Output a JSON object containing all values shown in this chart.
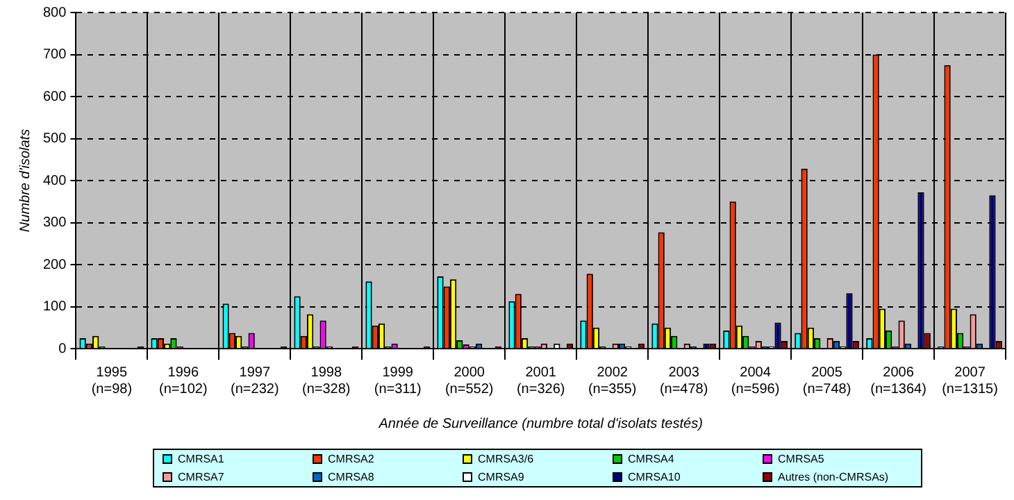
{
  "chart_data": {
    "type": "bar",
    "xlabel": "Année de Surveillance (numbre total d'isolats testés)",
    "ylabel": "Numbre d'isolats",
    "categories": [
      "1995 (n=98)",
      "1996 (n=102)",
      "1997 (n=232)",
      "1998 (n=328)",
      "1999 (n=311)",
      "2000 (n=552)",
      "2001 (n=326)",
      "2002 (n=355)",
      "2003 (n=478)",
      "2004 (n=596)",
      "2005 (n=748)",
      "2006 (n=1364)",
      "2007 (n=1315)"
    ],
    "series": [
      {
        "name": "CMRSA1",
        "color": "#00ffff",
        "values": [
          25,
          25,
          107,
          125,
          160,
          172,
          113,
          67,
          60,
          43,
          37,
          25,
          5
        ]
      },
      {
        "name": "CMRSA2",
        "color": "#ff3300",
        "values": [
          12,
          25,
          37,
          30,
          55,
          148,
          130,
          178,
          277,
          350,
          428,
          700,
          675
        ]
      },
      {
        "name": "CMRSA3/6",
        "color": "#ffff00",
        "values": [
          30,
          12,
          30,
          82,
          60,
          165,
          25,
          50,
          50,
          55,
          50,
          95,
          95
        ]
      },
      {
        "name": "CMRSA4",
        "color": "#00cc00",
        "values": [
          5,
          25,
          5,
          5,
          5,
          20,
          5,
          5,
          30,
          30,
          25,
          43,
          37
        ]
      },
      {
        "name": "CMRSA5",
        "color": "#ff00ff",
        "values": [
          0,
          5,
          37,
          67,
          12,
          10,
          5,
          0,
          0,
          5,
          0,
          5,
          5
        ]
      },
      {
        "name": "CMRSA7",
        "color": "#ff9999",
        "values": [
          0,
          0,
          0,
          5,
          0,
          5,
          12,
          12,
          12,
          18,
          25,
          67,
          82
        ]
      },
      {
        "name": "CMRSA8",
        "color": "#0066cc",
        "values": [
          0,
          0,
          0,
          0,
          0,
          12,
          0,
          12,
          5,
          5,
          18,
          12,
          12
        ]
      },
      {
        "name": "CMRSA9",
        "color": "#ffffff",
        "values": [
          0,
          0,
          0,
          0,
          0,
          0,
          12,
          5,
          0,
          5,
          5,
          0,
          0
        ]
      },
      {
        "name": "CMRSA10",
        "color": "#000080",
        "values": [
          0,
          0,
          0,
          0,
          0,
          0,
          0,
          0,
          12,
          62,
          132,
          372,
          365
        ]
      },
      {
        "name": "Autres (non-CMRSAs)",
        "color": "#990000",
        "values": [
          5,
          0,
          5,
          5,
          5,
          5,
          12,
          12,
          12,
          18,
          18,
          37,
          18
        ]
      }
    ],
    "ylim": [
      0,
      800
    ],
    "yticks": [
      0,
      100,
      200,
      300,
      400,
      500,
      600,
      700,
      800
    ],
    "grid": true,
    "legend": "bottom"
  }
}
